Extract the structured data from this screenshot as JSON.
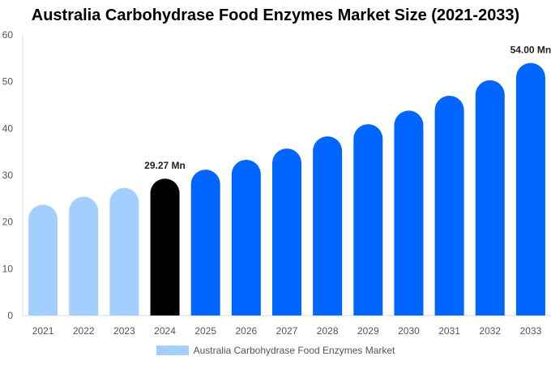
{
  "chart_data": {
    "type": "bar",
    "title": "Australia Carbohydrase Food Enzymes Market Size (2021-2033)",
    "categories": [
      "2021",
      "2022",
      "2023",
      "2024",
      "2025",
      "2026",
      "2027",
      "2028",
      "2029",
      "2030",
      "2031",
      "2032",
      "2033"
    ],
    "series": [
      {
        "name": "Australia Carbohydrase Food Enzymes Market",
        "values": [
          23.7,
          25.4,
          27.3,
          29.27,
          31.2,
          33.3,
          35.7,
          38.3,
          40.9,
          43.8,
          47.0,
          50.3,
          54.0
        ]
      }
    ],
    "data_labels": {
      "3": "29.27 Mn",
      "12": "54.00 Mn"
    },
    "ylim": [
      0,
      60
    ],
    "yticks": [
      0,
      10,
      20,
      30,
      40,
      50,
      60
    ],
    "grid": false,
    "legend_position": "bottom",
    "colors": {
      "historical": "#a3cfff",
      "base_year": "#000000",
      "forecast": "#0066ff"
    }
  }
}
